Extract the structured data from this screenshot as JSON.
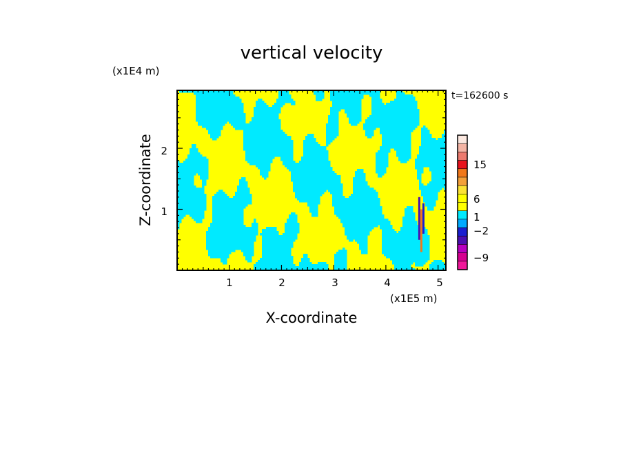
{
  "chart_data": {
    "type": "heatmap",
    "title": "vertical velocity",
    "xlabel": "X-coordinate",
    "ylabel": "Z-coordinate",
    "x_unit": "(x1E5 m)",
    "y_unit": "(x1E4 m)",
    "time_label": "t=162600 s",
    "xlim": [
      0,
      5.15
    ],
    "ylim": [
      0,
      2.95
    ],
    "x_ticks": [
      "1",
      "2",
      "3",
      "4",
      "5"
    ],
    "y_ticks": [
      "1",
      "2"
    ],
    "colorbar": {
      "tick_labels": [
        "15",
        "6",
        "1",
        "−2",
        "−9"
      ],
      "tick_values": [
        15,
        6,
        1,
        -2,
        -9
      ],
      "levels": [
        {
          "range": [
            18,
            24
          ],
          "color": "#fbe8e0"
        },
        {
          "range": [
            15,
            18
          ],
          "color": "#f4b4a4"
        },
        {
          "range": [
            12,
            15
          ],
          "color": "#ec7a6e"
        },
        {
          "range": [
            9,
            12
          ],
          "color": "#e8131d"
        },
        {
          "range": [
            6,
            9
          ],
          "color": "#f1781a"
        },
        {
          "range": [
            3,
            6
          ],
          "color": "#f3a03a"
        },
        {
          "range": [
            2,
            3
          ],
          "color": "#fbe235"
        },
        {
          "range": [
            1,
            2
          ],
          "color": "#ffff00"
        },
        {
          "range": [
            0,
            1
          ],
          "color": "#ffff00"
        },
        {
          "range": [
            -1,
            0
          ],
          "color": "#00eaff"
        },
        {
          "range": [
            -2,
            -1
          ],
          "color": "#00aaff"
        },
        {
          "range": [
            -3,
            -2
          ],
          "color": "#1a1fd0"
        },
        {
          "range": [
            -6,
            -3
          ],
          "color": "#4b0fb0"
        },
        {
          "range": [
            -9,
            -6
          ],
          "color": "#b800c0"
        },
        {
          "range": [
            -12,
            -9
          ],
          "color": "#d60090"
        },
        {
          "range": [
            -15,
            -12
          ],
          "color": "#f0189a"
        }
      ]
    },
    "field_colors": {
      "positive": "#ffff00",
      "negative": "#00eaff"
    }
  }
}
